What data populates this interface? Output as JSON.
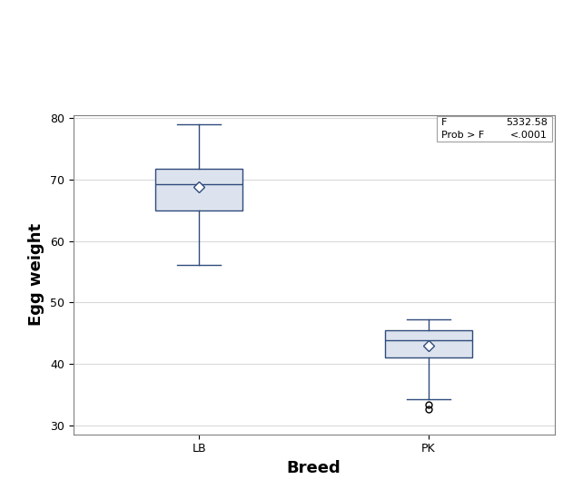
{
  "chart_data": {
    "type": "box",
    "x_label": "Breed",
    "y_label": "Egg weight",
    "categories": [
      "LB",
      "PK"
    ],
    "boxes": [
      {
        "whislo": 56.1,
        "q1": 65.0,
        "med": 69.2,
        "q3": 71.8,
        "whishi": 79.0,
        "mean": 68.8,
        "fliers": []
      },
      {
        "whislo": 34.3,
        "q1": 41.1,
        "med": 43.9,
        "q3": 45.5,
        "whishi": 47.2,
        "mean": 43.0,
        "fliers": [
          33.4,
          32.7
        ]
      }
    ],
    "color": "#dde3ee",
    "ylim": [
      28.6,
      80.5
    ],
    "yticks": [
      30,
      40,
      50,
      60,
      70,
      80
    ],
    "grid": true,
    "stats": [
      {
        "label": "F",
        "value": "5332.58"
      },
      {
        "label": "Prob > F",
        "value": "<.0001"
      }
    ]
  }
}
